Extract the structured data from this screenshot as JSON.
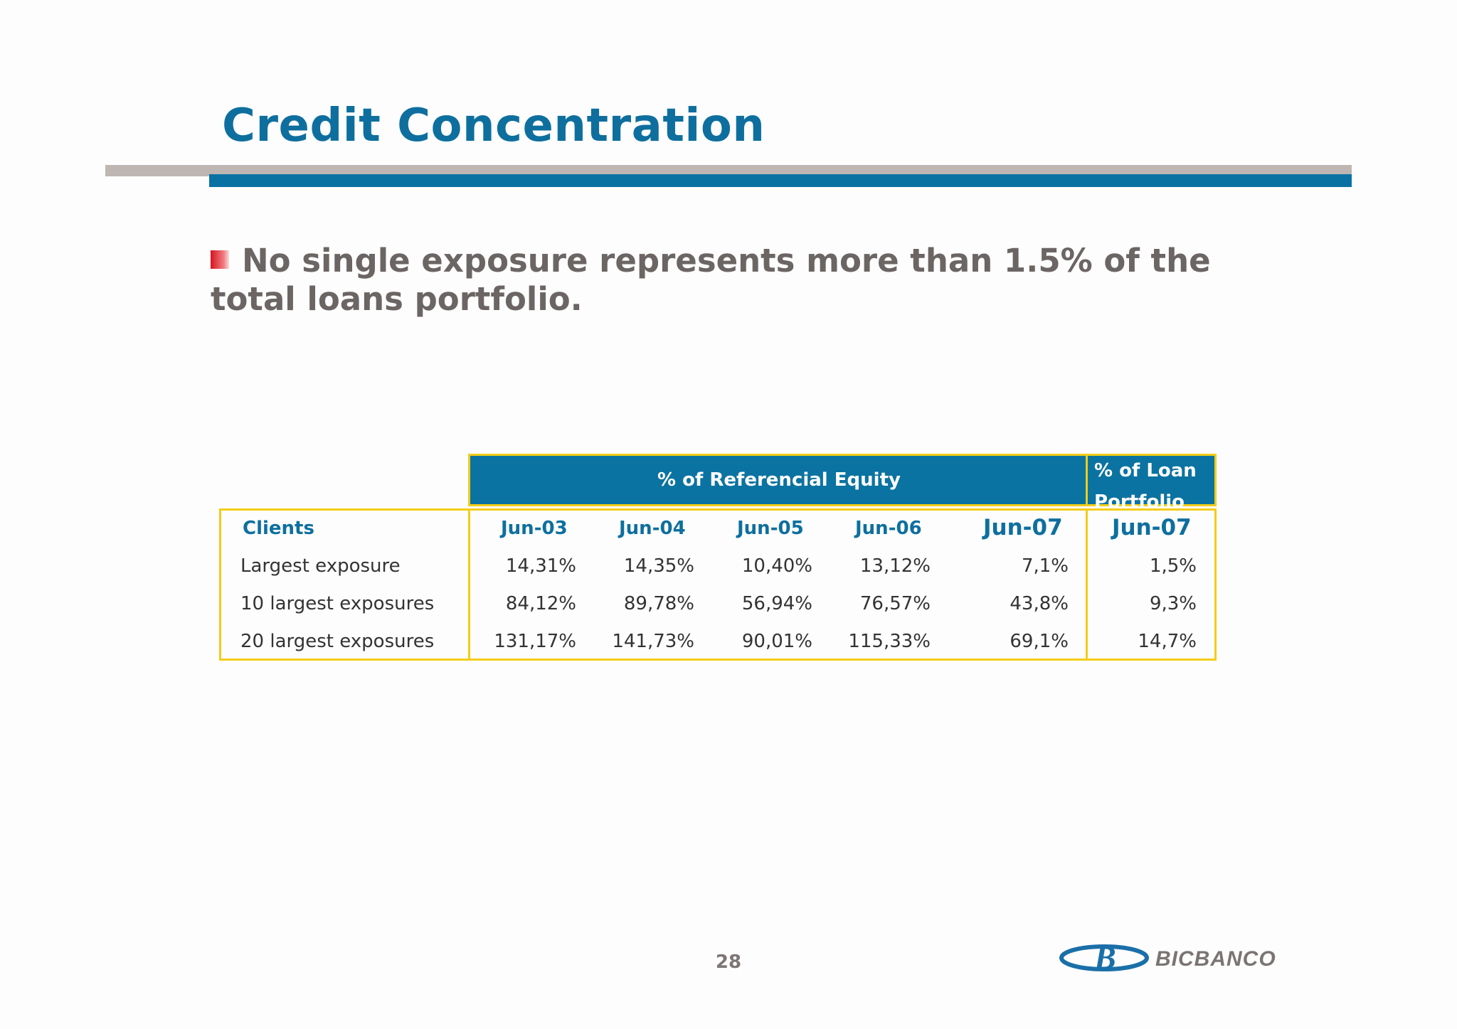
{
  "slide": {
    "title": "Credit Concentration",
    "bullet": "No single exposure represents more than 1.5% of the total loans portfolio.",
    "page_number": "28"
  },
  "table": {
    "group_header_equity": "% of  Referencial Equity",
    "group_header_loan_line1": "% of Loan",
    "group_header_loan_line2": "Portfolio",
    "columns": [
      "Clients",
      "Jun-03",
      "Jun-04",
      "Jun-05",
      "Jun-06",
      "Jun-07",
      "Jun-07"
    ],
    "rows": [
      {
        "label": "Largest exposure",
        "values": [
          "14,31%",
          "14,35%",
          "10,40%",
          "13,12%",
          "7,1%",
          "1,5%"
        ]
      },
      {
        "label": "10  largest exposures",
        "values": [
          "84,12%",
          "89,78%",
          "56,94%",
          "76,57%",
          "43,8%",
          "9,3%"
        ]
      },
      {
        "label": "20  largest exposures",
        "values": [
          "131,17%",
          "141,73%",
          "90,01%",
          "115,33%",
          "69,1%",
          "14,7%"
        ]
      }
    ]
  },
  "logo": {
    "text": "BICBANCO",
    "mark": "B"
  },
  "colors": {
    "brand_blue": "#0b73a1",
    "accent_yellow": "#f3cd18",
    "bullet_red": "#d6151f"
  }
}
